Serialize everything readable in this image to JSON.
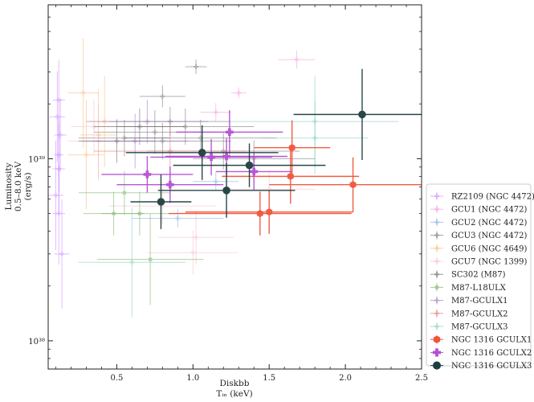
{
  "chart_data": {
    "type": "scatter",
    "xlabel_line1": "Diskbb",
    "xlabel_line2": "Tᵢₙ (keV)",
    "ylabel_line1": "Luminosity",
    "ylabel_line2": "0.5–8.0 keV",
    "ylabel_line3": "(erg/s)",
    "xlim": [
      0.05,
      2.5
    ],
    "ylim": [
      7e+37,
      7e+39
    ],
    "yscale": "log",
    "x_ticks": [
      {
        "value": 0.5,
        "label": "0.5"
      },
      {
        "value": 1.0,
        "label": "1.0"
      },
      {
        "value": 1.5,
        "label": "1.5"
      },
      {
        "value": 2.0,
        "label": "2.0"
      },
      {
        "value": 2.5,
        "label": "2.5"
      }
    ],
    "y_ticks": [
      {
        "value": 1e+38,
        "label": "10³⁸"
      },
      {
        "value": 1e+39,
        "label": "10³⁹"
      }
    ],
    "legend_position": "outside-right",
    "series": [
      {
        "name": "RZ2109 (NGC 4472)",
        "color": "#c77dff",
        "marker": "plus",
        "points": [
          {
            "x": 0.12,
            "y": 2.1e+39,
            "xerr": 0.04,
            "yerr": 0.22
          },
          {
            "x": 0.11,
            "y": 1.7e+39,
            "xerr": 0.05,
            "yerr": 0.25
          },
          {
            "x": 0.13,
            "y": 1.35e+39,
            "xerr": 0.04,
            "yerr": 0.2
          },
          {
            "x": 0.12,
            "y": 1.05e+39,
            "xerr": 0.03,
            "yerr": 0.2
          },
          {
            "x": 0.12,
            "y": 8.8e+38,
            "xerr": 0.04,
            "yerr": 0.25
          },
          {
            "x": 0.1,
            "y": 6.3e+38,
            "xerr": 0.05,
            "yerr": 0.3
          },
          {
            "x": 0.12,
            "y": 5e+38,
            "xerr": 0.04,
            "yerr": 0.28
          },
          {
            "x": 0.14,
            "y": 3e+38,
            "xerr": 0.05,
            "yerr": 0.3
          }
        ]
      },
      {
        "name": "GCU1 (NGC 4472)",
        "color": "#f28cd8",
        "marker": "plus",
        "points": [
          {
            "x": 1.68,
            "y": 3.5e+39,
            "xerr": 0.12,
            "yerr": 0.05
          },
          {
            "x": 1.3,
            "y": 2.3e+39,
            "xerr": 0.05,
            "yerr": 0.03
          },
          {
            "x": 1.15,
            "y": 1.8e+39,
            "xerr": 0.1,
            "yerr": 0.05
          }
        ]
      },
      {
        "name": "GCU2 (NGC 4472)",
        "color": "#6fa8dc",
        "marker": "plus",
        "points": [
          {
            "x": 1.15,
            "y": 7.5e+38,
            "xerr": 0.15,
            "yerr": 0.05
          },
          {
            "x": 0.9,
            "y": 4.7e+38,
            "xerr": 0.3,
            "yerr": 0.05
          }
        ]
      },
      {
        "name": "GCU3 (NGC 4472)",
        "color": "#666666",
        "marker": "plus",
        "points": [
          {
            "x": 1.02,
            "y": 3.2e+39,
            "xerr": 0.07,
            "yerr": 0.04
          },
          {
            "x": 0.8,
            "y": 2.2e+39,
            "xerr": 0.15,
            "yerr": 0.06
          },
          {
            "x": 0.85,
            "y": 1.6e+39,
            "xerr": 0.4,
            "yerr": 0.08
          },
          {
            "x": 0.95,
            "y": 1.5e+39,
            "xerr": 0.45,
            "yerr": 0.1
          },
          {
            "x": 0.75,
            "y": 1.4e+39,
            "xerr": 0.4,
            "yerr": 0.12
          },
          {
            "x": 1.05,
            "y": 1.3e+39,
            "xerr": 0.5,
            "yerr": 0.1
          },
          {
            "x": 0.55,
            "y": 1.3e+39,
            "xerr": 0.3,
            "yerr": 0.1
          },
          {
            "x": 0.8,
            "y": 1.25e+39,
            "xerr": 0.45,
            "yerr": 0.1
          },
          {
            "x": 1.2,
            "y": 1.1e+39,
            "xerr": 0.5,
            "yerr": 0.1
          },
          {
            "x": 1.4,
            "y": 1e+39,
            "xerr": 0.4,
            "yerr": 0.1
          }
        ]
      },
      {
        "name": "GCU6 (NGC 4649)",
        "color": "#f6b26b",
        "marker": "plus",
        "points": [
          {
            "x": 0.28,
            "y": 2.3e+39,
            "xerr": 0.1,
            "yerr": 0.3
          },
          {
            "x": 0.38,
            "y": 1.35e+39,
            "xerr": 0.12,
            "yerr": 0.25
          },
          {
            "x": 0.3,
            "y": 1.05e+39,
            "xerr": 0.12,
            "yerr": 0.3
          },
          {
            "x": 0.42,
            "y": 1.6e+39,
            "xerr": 0.1,
            "yerr": 0.25
          }
        ]
      },
      {
        "name": "GCU7 (NGC 1399)",
        "color": "#f4b6c2",
        "marker": "plus",
        "points": [
          {
            "x": 0.38,
            "y": 1.25e+39,
            "xerr": 0.2,
            "yerr": 0.2
          },
          {
            "x": 1.0,
            "y": 3.05e+38,
            "xerr": 0.3,
            "yerr": 0.12
          },
          {
            "x": 1.02,
            "y": 3.7e+38,
            "xerr": 0.25,
            "yerr": 0.15
          },
          {
            "x": 1.5,
            "y": 6.8e+38,
            "xerr": 0.3,
            "yerr": 0.1
          },
          {
            "x": 0.35,
            "y": 1.5e+39,
            "xerr": 0.15,
            "yerr": 0.15
          },
          {
            "x": 0.8,
            "y": 5.5e+38,
            "xerr": 0.35,
            "yerr": 0.1
          }
        ]
      },
      {
        "name": "SC302 (M87)",
        "color": "#555555",
        "marker": "plus",
        "points": [
          {
            "x": 0.65,
            "y": 1.5e+39,
            "xerr": 0.3,
            "yerr": 0.1
          },
          {
            "x": 0.5,
            "y": 1.25e+39,
            "xerr": 0.25,
            "yerr": 0.12
          }
        ]
      },
      {
        "name": "M87-L18ULX",
        "color": "#6aa84f",
        "marker": "circle",
        "points": [
          {
            "x": 0.65,
            "y": 5e+38,
            "xerr": 0.25,
            "yerr": 0.12
          },
          {
            "x": 0.48,
            "y": 5e+38,
            "xerr": 0.2,
            "yerr": 0.12
          },
          {
            "x": 0.72,
            "y": 2.8e+38,
            "xerr": 0.35,
            "yerr": 0.25
          },
          {
            "x": 0.55,
            "y": 6.5e+38,
            "xerr": 0.3,
            "yerr": 0.12
          }
        ]
      },
      {
        "name": "M87-GCULX1",
        "color": "#9467bd",
        "marker": "plus",
        "points": [
          {
            "x": 0.62,
            "y": 1.25e+39,
            "xerr": 0.35,
            "yerr": 0.15
          },
          {
            "x": 0.7,
            "y": 1.6e+39,
            "xerr": 0.4,
            "yerr": 0.12
          }
        ]
      },
      {
        "name": "M87-GCULX2",
        "color": "#e06666",
        "marker": "plus",
        "points": [
          {
            "x": 0.85,
            "y": 1.1e+39,
            "xerr": 0.5,
            "yerr": 0.15
          }
        ]
      },
      {
        "name": "M87-GCULX3",
        "color": "#76c7b7",
        "marker": "plus",
        "points": [
          {
            "x": 1.8,
            "y": 1.6e+39,
            "xerr": 0.55,
            "yerr": 0.25
          },
          {
            "x": 1.8,
            "y": 1.3e+39,
            "xerr": 0.35,
            "yerr": 0.2
          },
          {
            "x": 0.6,
            "y": 2.7e+38,
            "xerr": 0.35,
            "yerr": 0.3
          }
        ]
      },
      {
        "name": "NGC 1316 GCULX1",
        "color": "#f0553a",
        "marker": "hexagon",
        "points": [
          {
            "x": 1.65,
            "y": 1.15e+39,
            "xerr": 0.25,
            "yerr": 0.15
          },
          {
            "x": 1.64,
            "y": 8e+38,
            "xerr": 0.45,
            "yerr": 0.15
          },
          {
            "x": 2.05,
            "y": 7.2e+38,
            "xerr": 0.55,
            "yerr": 0.15
          },
          {
            "x": 1.44,
            "y": 5e+38,
            "xerr": 0.6,
            "yerr": 0.12
          },
          {
            "x": 1.5,
            "y": 5.1e+38,
            "xerr": 0.55,
            "yerr": 0.12
          }
        ]
      },
      {
        "name": "NGC 1316 GCULX2",
        "color": "#b450d2",
        "marker": "cross",
        "points": [
          {
            "x": 1.24,
            "y": 1.4e+39,
            "xerr": 0.35,
            "yerr": 0.12
          },
          {
            "x": 1.12,
            "y": 1.02e+39,
            "xerr": 0.4,
            "yerr": 0.1
          },
          {
            "x": 1.22,
            "y": 1.03e+39,
            "xerr": 0.4,
            "yerr": 0.1
          },
          {
            "x": 0.7,
            "y": 8.2e+38,
            "xerr": 0.3,
            "yerr": 0.1
          },
          {
            "x": 0.85,
            "y": 7.2e+38,
            "xerr": 0.35,
            "yerr": 0.1
          },
          {
            "x": 1.4,
            "y": 8.5e+38,
            "xerr": 0.25,
            "yerr": 0.1
          }
        ]
      },
      {
        "name": "NGC 1316 GCULX3",
        "color": "#1e3d3f",
        "marker": "circle-large",
        "points": [
          {
            "x": 2.11,
            "y": 1.75e+39,
            "xerr": 0.45,
            "yerr": 0.25
          },
          {
            "x": 1.06,
            "y": 1.08e+39,
            "xerr": 0.5,
            "yerr": 0.15
          },
          {
            "x": 1.37,
            "y": 9.2e+38,
            "xerr": 0.5,
            "yerr": 0.12
          },
          {
            "x": 1.22,
            "y": 6.7e+38,
            "xerr": 0.45,
            "yerr": 0.15
          },
          {
            "x": 0.79,
            "y": 5.8e+38,
            "xerr": 0.2,
            "yerr": 0.15
          }
        ]
      }
    ]
  }
}
